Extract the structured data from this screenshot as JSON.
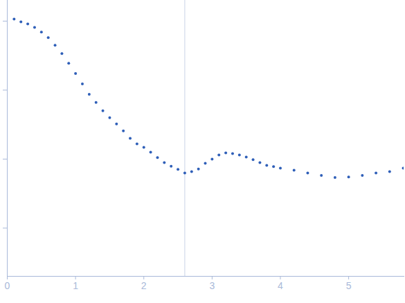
{
  "chart_data": {
    "type": "scatter",
    "log": "y",
    "tick_labels": "x",
    "color": "#2f5fb8",
    "marker": "circle",
    "x": [
      0.1,
      0.2,
      0.3,
      0.4,
      0.5,
      0.6,
      0.7,
      0.8,
      0.9,
      1.0,
      1.1,
      1.2,
      1.3,
      1.4,
      1.5,
      1.6,
      1.7,
      1.8,
      1.9,
      2.0,
      2.1,
      2.2,
      2.3,
      2.4,
      2.5,
      2.6,
      2.7,
      2.8,
      2.9,
      3.0,
      3.1,
      3.2,
      3.3,
      3.4,
      3.5,
      3.6,
      3.7,
      3.8,
      3.9,
      4.0,
      4.2,
      4.4,
      4.6,
      4.8,
      5.0,
      5.2,
      5.4,
      5.6,
      5.8
    ],
    "values": [
      1.07,
      0.977,
      0.912,
      0.813,
      0.692,
      0.575,
      0.447,
      0.339,
      0.245,
      0.174,
      0.123,
      0.0871,
      0.0661,
      0.0501,
      0.0398,
      0.0324,
      0.0257,
      0.02,
      0.0166,
      0.0148,
      0.0126,
      0.0105,
      0.0089,
      0.0079,
      0.0071,
      0.0063,
      0.0066,
      0.0072,
      0.0087,
      0.01,
      0.0115,
      0.0123,
      0.012,
      0.0115,
      0.0107,
      0.0098,
      0.0089,
      0.0081,
      0.0078,
      0.0074,
      0.0069,
      0.0063,
      0.0058,
      0.0054,
      0.0055,
      0.0058,
      0.0063,
      0.0066,
      0.0074
    ],
    "vertical_line": 2.6,
    "xlim": [
      0,
      5.81
    ],
    "xticks": [
      0,
      1,
      2,
      3,
      4,
      5
    ],
    "ylim": [
      0.0002,
      2
    ],
    "yticks": [
      0.001,
      0.01,
      0.1,
      1
    ]
  }
}
